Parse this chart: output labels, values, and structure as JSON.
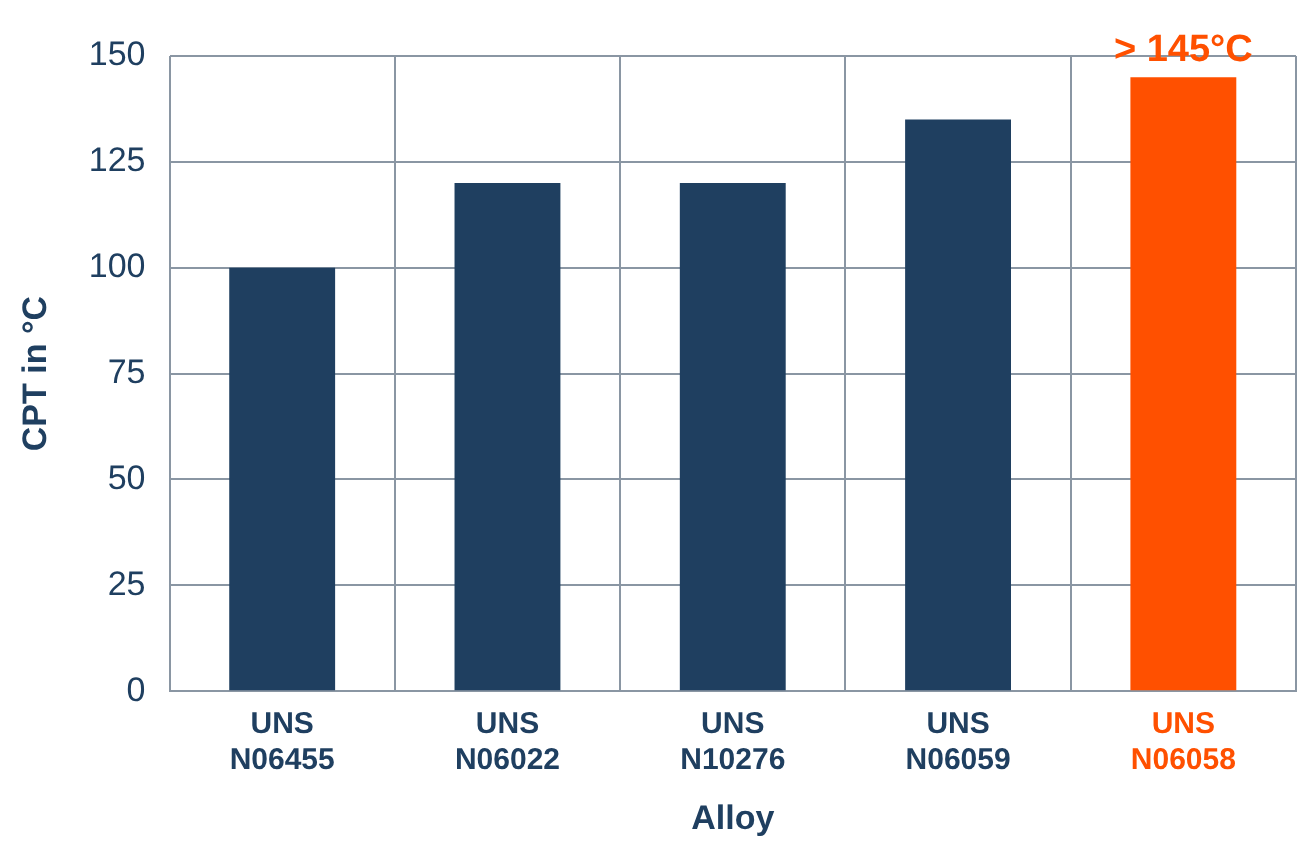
{
  "chart_data": {
    "type": "bar",
    "xlabel": "Alloy",
    "ylabel": "CPT in °C",
    "categories": [
      "UNS\nN06455",
      "UNS\nN06022",
      "UNS\nN10276",
      "UNS\nN06059",
      "UNS\nN06058"
    ],
    "values": [
      100,
      120,
      120,
      135,
      145
    ],
    "colors": [
      "#1f3f60",
      "#1f3f60",
      "#1f3f60",
      "#1f3f60",
      "#ff5000"
    ],
    "ylim": [
      0,
      150
    ],
    "yticks": [
      0,
      25,
      50,
      75,
      100,
      125,
      150
    ],
    "grid": true,
    "legend": false,
    "annotations": [
      {
        "text": "> 145°C",
        "x": "UNS\nN06058",
        "y": 145
      }
    ]
  }
}
